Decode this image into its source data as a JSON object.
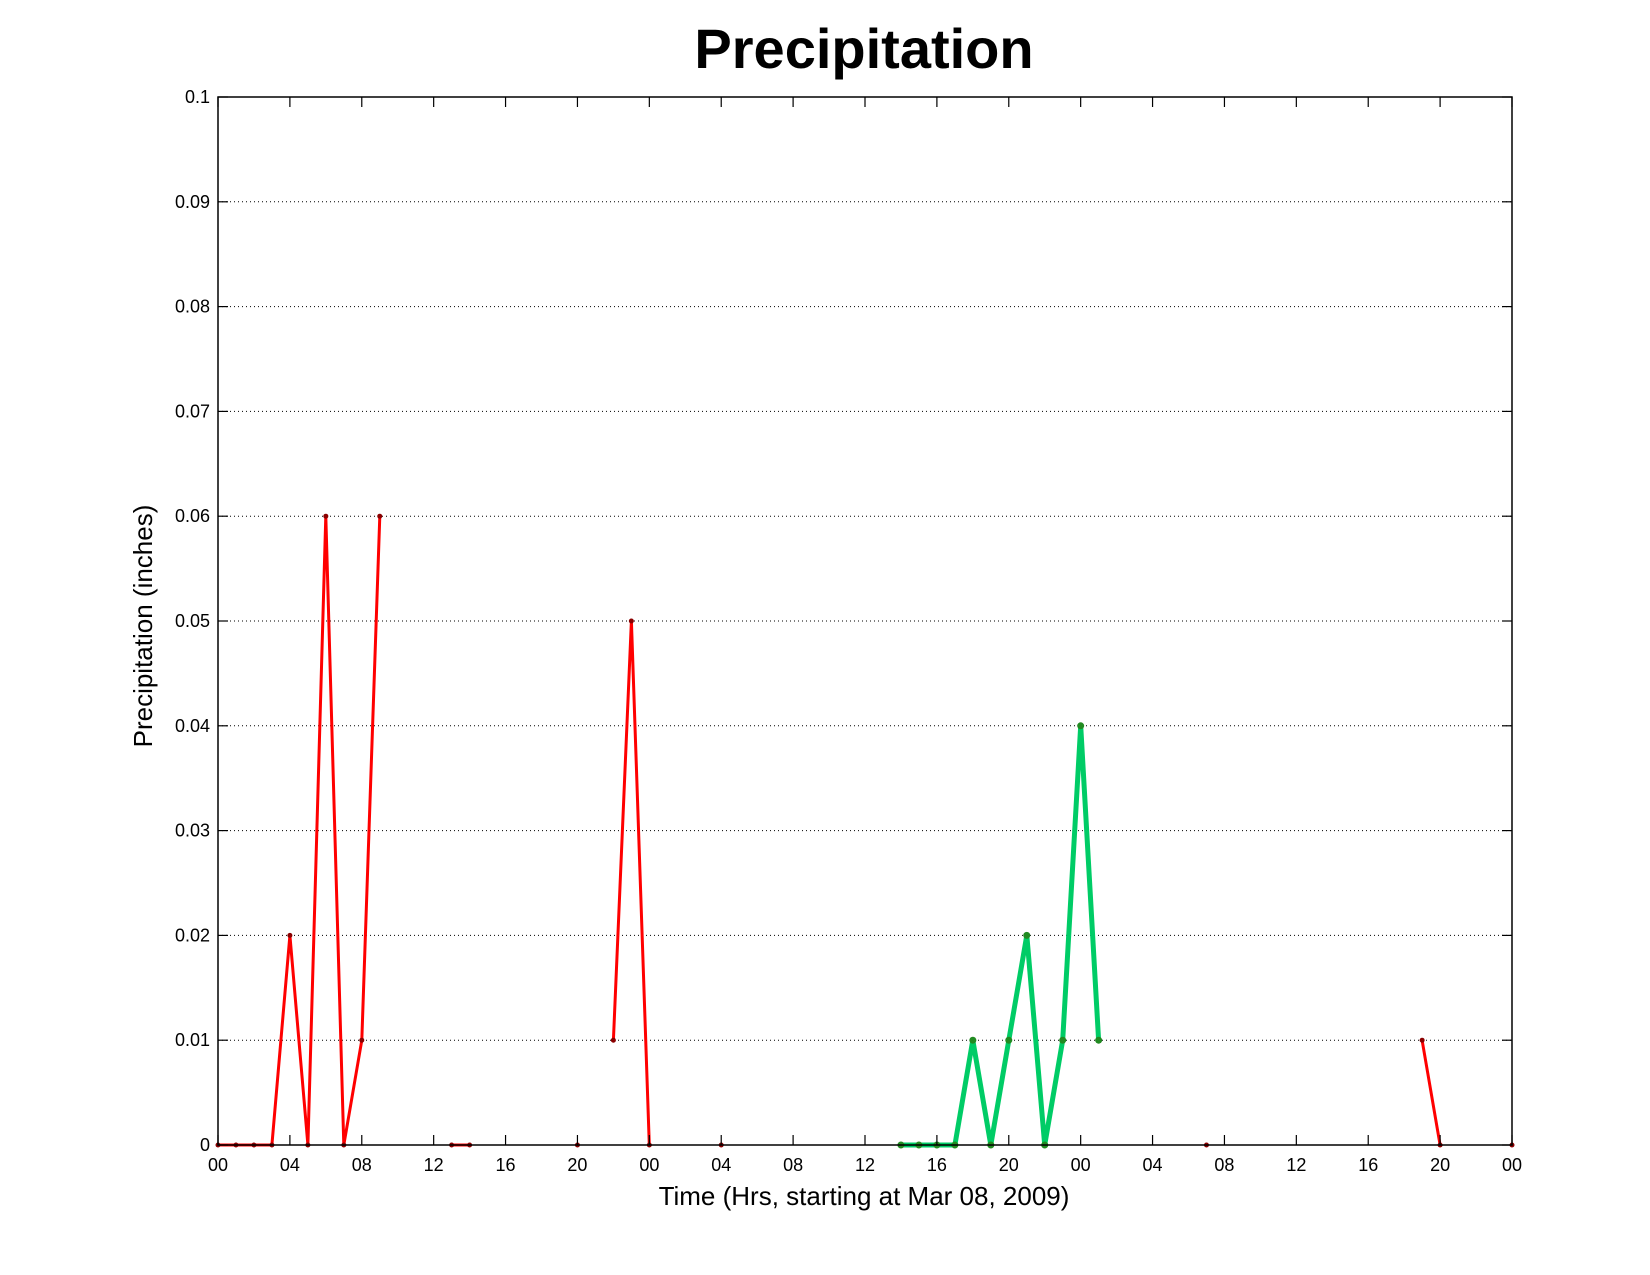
{
  "chart_data": {
    "type": "line",
    "title": "Precipitation",
    "xlabel": "Time (Hrs, starting at Mar 08, 2009)",
    "ylabel": "Precipitation (inches)",
    "x_unit": "hours",
    "xlim": [
      0,
      72
    ],
    "ylim": [
      0,
      0.1
    ],
    "grid": true,
    "x_ticks": [
      0,
      4,
      8,
      12,
      16,
      20,
      24,
      28,
      32,
      36,
      40,
      44,
      48,
      52,
      56,
      60,
      64,
      68,
      72
    ],
    "x_tick_labels": [
      "00",
      "04",
      "08",
      "12",
      "16",
      "20",
      "00",
      "04",
      "08",
      "12",
      "16",
      "20",
      "00",
      "04",
      "08",
      "12",
      "16",
      "20",
      "00"
    ],
    "y_ticks": [
      0,
      0.01,
      0.02,
      0.03,
      0.04,
      0.05,
      0.06,
      0.07,
      0.08,
      0.09,
      0.1
    ],
    "y_tick_labels": [
      "0",
      "0.01",
      "0.02",
      "0.03",
      "0.04",
      "0.05",
      "0.06",
      "0.07",
      "0.08",
      "0.09",
      "0.1"
    ],
    "series": [
      {
        "color": "#ff0000",
        "marker_color": "#8b0000",
        "line_width": 3,
        "segments": [
          [
            [
              0,
              0
            ],
            [
              1,
              0
            ],
            [
              2,
              0
            ],
            [
              3,
              0
            ],
            [
              4,
              0.02
            ],
            [
              5,
              0
            ],
            [
              6,
              0.06
            ],
            [
              7,
              0
            ],
            [
              8,
              0.01
            ],
            [
              9,
              0.06
            ]
          ],
          [
            [
              13,
              0
            ],
            [
              14,
              0
            ]
          ],
          [
            [
              20,
              0
            ]
          ],
          [
            [
              22,
              0.01
            ],
            [
              23,
              0.05
            ],
            [
              24,
              0
            ]
          ],
          [
            [
              28,
              0
            ]
          ],
          [
            [
              55,
              0
            ]
          ],
          [
            [
              67,
              0.01
            ],
            [
              68,
              0
            ]
          ],
          [
            [
              72,
              0
            ]
          ]
        ]
      },
      {
        "color": "#00cc66",
        "marker_color": "#228b22",
        "line_width": 5,
        "segments": [
          [
            [
              38,
              0
            ],
            [
              39,
              0
            ],
            [
              40,
              0
            ],
            [
              41,
              0
            ],
            [
              42,
              0.01
            ],
            [
              43,
              0
            ],
            [
              44,
              0.01
            ],
            [
              45,
              0.02
            ],
            [
              46,
              0
            ],
            [
              47,
              0.01
            ],
            [
              48,
              0.04
            ],
            [
              49,
              0.01
            ]
          ]
        ]
      }
    ]
  }
}
